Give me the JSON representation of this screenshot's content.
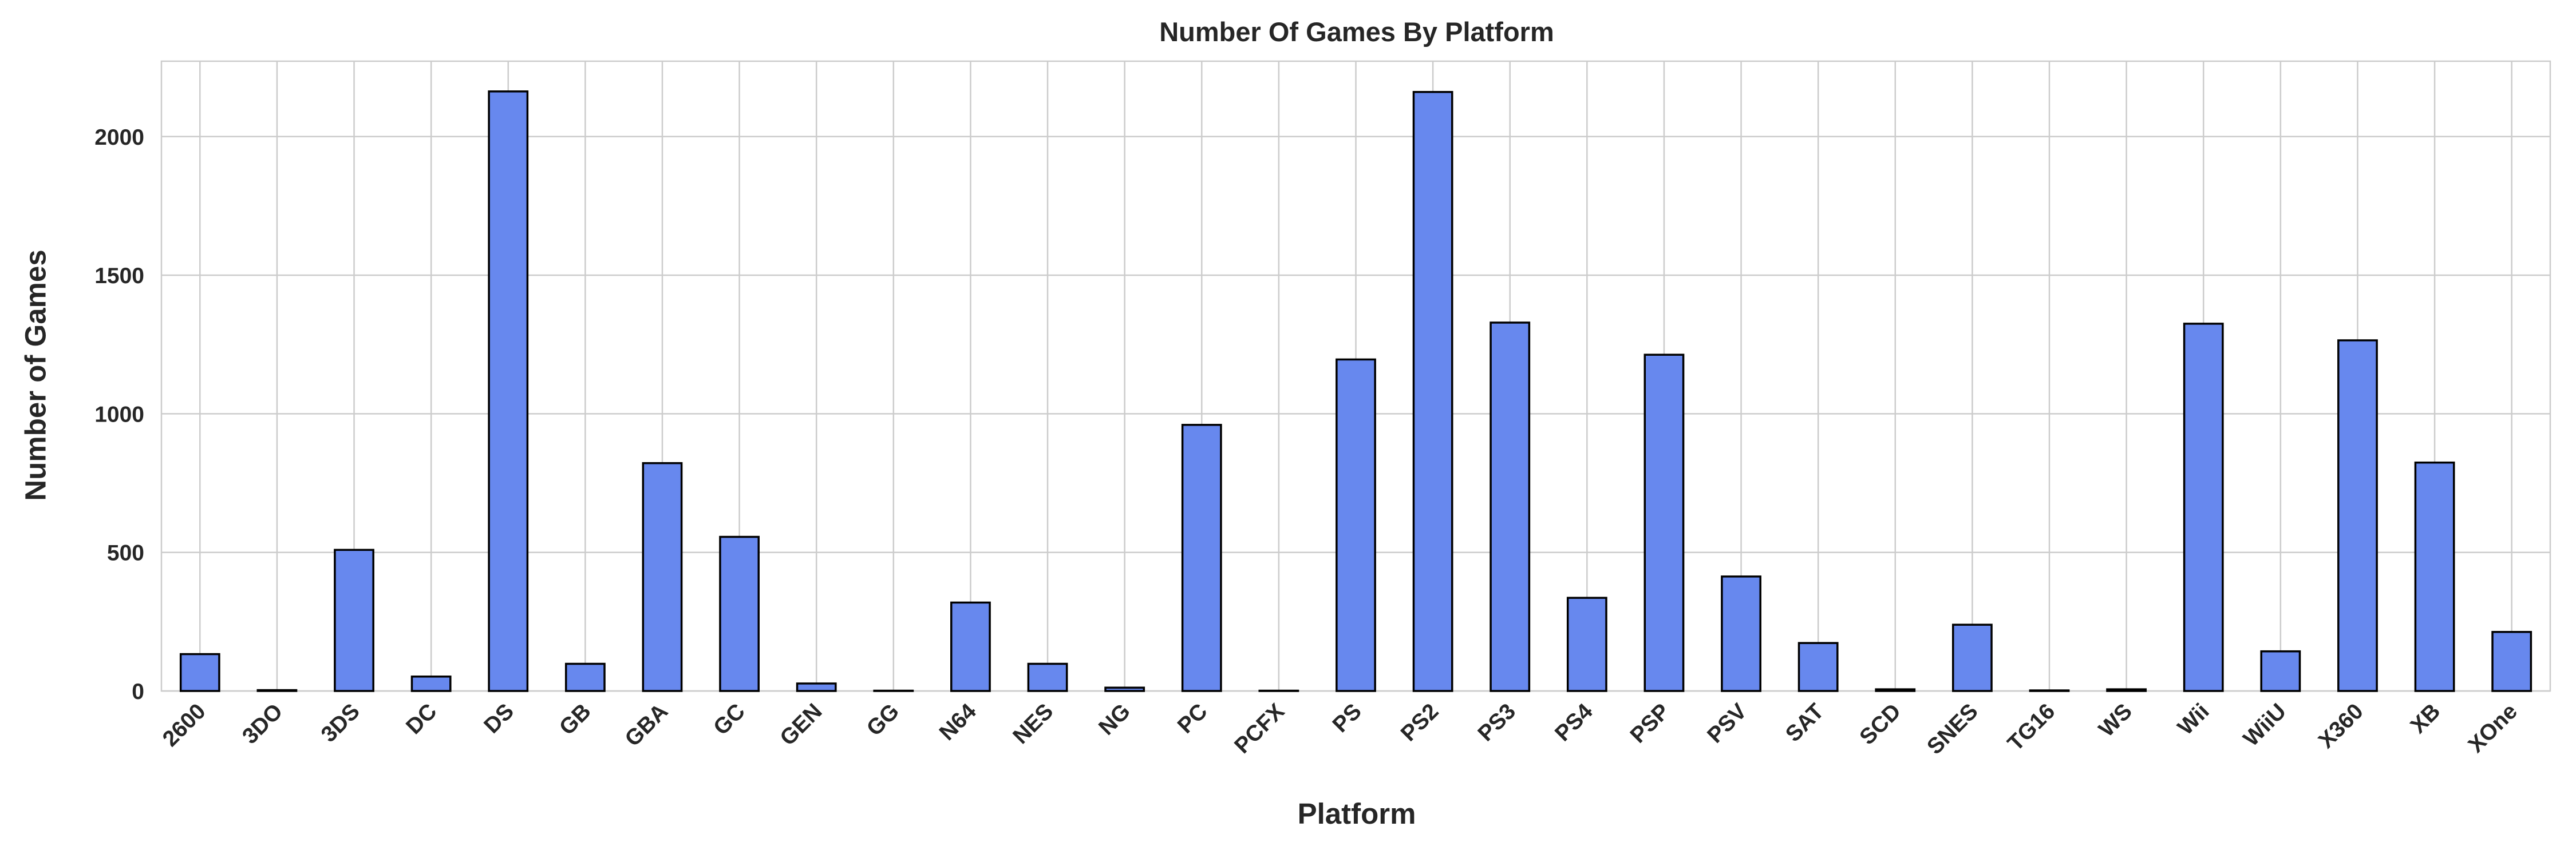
{
  "chart_data": {
    "type": "bar",
    "title": "Number Of Games By Platform",
    "xlabel": "Platform",
    "ylabel": "Number of Games",
    "categories": [
      "2600",
      "3DO",
      "3DS",
      "DC",
      "DS",
      "GB",
      "GBA",
      "GC",
      "GEN",
      "GG",
      "N64",
      "NES",
      "NG",
      "PC",
      "PCFX",
      "PS",
      "PS2",
      "PS3",
      "PS4",
      "PSP",
      "PSV",
      "SAT",
      "SCD",
      "SNES",
      "TG16",
      "WS",
      "Wii",
      "WiiU",
      "X360",
      "XB",
      "XOne"
    ],
    "values": [
      133,
      3,
      509,
      52,
      2163,
      98,
      822,
      556,
      27,
      1,
      319,
      98,
      12,
      960,
      1,
      1196,
      2161,
      1329,
      336,
      1213,
      413,
      173,
      6,
      239,
      2,
      6,
      1325,
      143,
      1265,
      824,
      213
    ],
    "ylim": [
      0,
      2272
    ],
    "yticks": [
      0,
      500,
      1000,
      1500,
      2000
    ],
    "grid": true,
    "bar_color": "#6788ee",
    "edge_color": "#000000",
    "grid_color": "#cccccc"
  }
}
